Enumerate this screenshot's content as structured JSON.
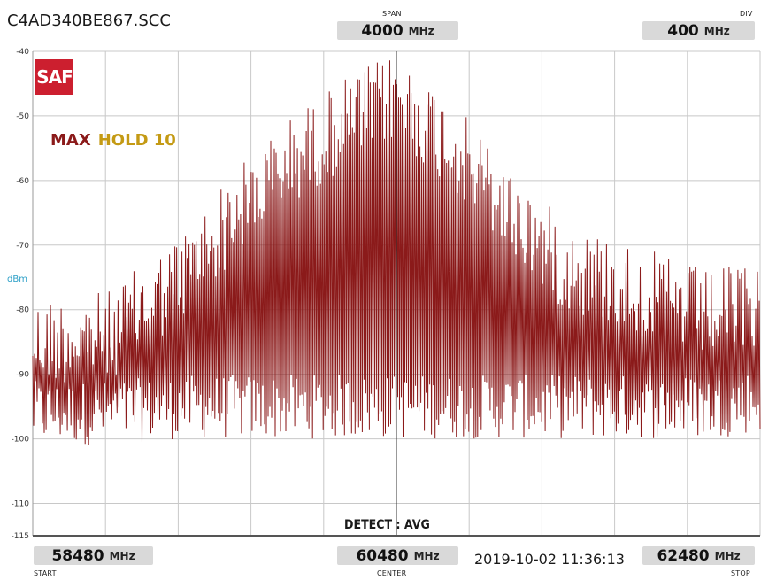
{
  "header": {
    "filename": "C4AD340BE867.SCC",
    "span_caption": "SPAN",
    "span_value": "4000",
    "span_unit": "MHz",
    "div_caption": "DIV",
    "div_value": "400",
    "div_unit": "MHz"
  },
  "logo": {
    "text": "SAF"
  },
  "mode": {
    "max_label": "MAX",
    "hold_label": "HOLD 10"
  },
  "detect_label": "DETECT : AVG",
  "footer": {
    "start_value": "58480",
    "start_unit": "MHz",
    "start_caption": "START",
    "center_value": "60480",
    "center_unit": "MHz",
    "center_caption": "CENTER",
    "stop_value": "62480",
    "stop_unit": "MHz",
    "stop_caption": "STOP",
    "timestamp": "2019-10-02 11:36:13"
  },
  "colors": {
    "trace": "#8b1a1a",
    "grid": "#c8c8c8",
    "axis": "#555555",
    "ylabel": "#2b9fc7",
    "hold": "#c49a14",
    "logo_bg": "#cc1f2f"
  },
  "chart_data": {
    "type": "line",
    "title": "",
    "xlabel": "",
    "ylabel": "dBm",
    "xlim": [
      58480,
      62480
    ],
    "ylim": [
      -115,
      -40
    ],
    "grid": true,
    "y_ticks": [
      -40,
      -50,
      -60,
      -70,
      -80,
      -90,
      -100,
      -110,
      -115
    ],
    "center_marker_x": 60480,
    "envelope": {
      "x": [
        58480,
        58900,
        59300,
        59600,
        59900,
        60200,
        60480,
        60800,
        61100,
        61400,
        61800,
        62200,
        62480
      ],
      "max_dBm": [
        -78,
        -77,
        -68,
        -58,
        -50,
        -44,
        -40,
        -48,
        -58,
        -66,
        -70,
        -74,
        -72
      ],
      "min_dBm": [
        -101,
        -101,
        -100,
        -100,
        -100,
        -100,
        -100,
        -100,
        -100,
        -100,
        -100,
        -100,
        -99
      ]
    },
    "series": [
      {
        "values_note_excluded": false
      }
    ]
  }
}
